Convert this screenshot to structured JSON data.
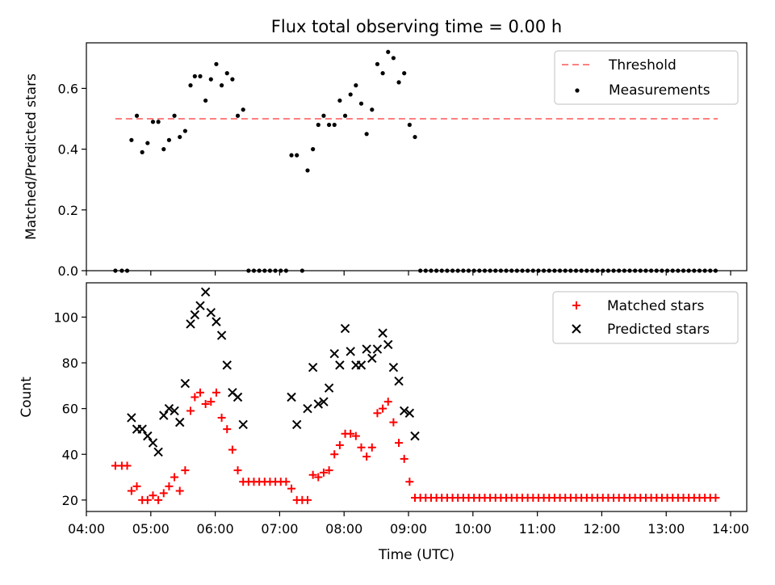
{
  "chart_data": [
    {
      "type": "scatter",
      "title": "Flux total observing time = 0.00 h",
      "xlabel": "",
      "ylabel": "Matched/Predicted stars",
      "ylim": [
        0,
        0.75
      ],
      "yticks": [
        0.0,
        0.2,
        0.4,
        0.6
      ],
      "ytick_labels": [
        "0.0",
        "0.2",
        "0.4",
        "0.6"
      ],
      "xlim": [
        "04:00",
        "14:15"
      ],
      "legend": "top-right",
      "series": [
        {
          "name": "Threshold",
          "kind": "dashed-line",
          "color": "#ff7f7f",
          "x": [
            "04:27",
            "13:48"
          ],
          "y": [
            0.5,
            0.5
          ]
        },
        {
          "name": "Measurements",
          "kind": "points",
          "color": "#000000",
          "x": [
            "04:27",
            "04:33",
            "04:38",
            "04:42",
            "04:47",
            "04:52",
            "04:57",
            "05:02",
            "05:07",
            "05:12",
            "05:17",
            "05:22",
            "05:27",
            "05:32",
            "05:37",
            "05:41",
            "05:46",
            "05:51",
            "05:56",
            "06:01",
            "06:06",
            "06:11",
            "06:16",
            "06:21",
            "06:26",
            "06:31",
            "06:36",
            "06:41",
            "06:46",
            "06:51",
            "06:56",
            "07:01",
            "07:06",
            "07:11",
            "07:16",
            "07:21",
            "07:26",
            "07:31",
            "07:36",
            "07:41",
            "07:46",
            "07:51",
            "07:56",
            "08:01",
            "08:06",
            "08:11",
            "08:16",
            "08:21",
            "08:26",
            "08:31",
            "08:36",
            "08:41",
            "08:46",
            "08:51",
            "08:56",
            "09:01",
            "09:06",
            "09:11",
            "09:16",
            "09:21",
            "09:26",
            "09:31",
            "09:36",
            "09:41",
            "09:46",
            "09:51",
            "09:56",
            "10:01",
            "10:06",
            "10:11",
            "10:16",
            "10:21",
            "10:26",
            "10:31",
            "10:36",
            "10:41",
            "10:46",
            "10:51",
            "10:56",
            "11:01",
            "11:06",
            "11:11",
            "11:16",
            "11:21",
            "11:26",
            "11:31",
            "11:36",
            "11:41",
            "11:46",
            "11:51",
            "11:56",
            "12:01",
            "12:06",
            "12:11",
            "12:16",
            "12:21",
            "12:26",
            "12:31",
            "12:36",
            "12:41",
            "12:46",
            "12:51",
            "12:56",
            "13:01",
            "13:06",
            "13:11",
            "13:16",
            "13:21",
            "13:26",
            "13:31",
            "13:36",
            "13:41",
            "13:46"
          ],
          "y": [
            0.0,
            0.0,
            0.0,
            0.43,
            0.51,
            0.39,
            0.42,
            0.49,
            0.49,
            0.4,
            0.43,
            0.51,
            0.44,
            0.46,
            0.61,
            0.64,
            0.64,
            0.56,
            0.63,
            0.68,
            0.61,
            0.65,
            0.63,
            0.51,
            0.53,
            0.0,
            0.0,
            0.0,
            0.0,
            0.0,
            0.0,
            0.0,
            0.0,
            0.38,
            0.38,
            0.0,
            0.33,
            0.4,
            0.48,
            0.51,
            0.48,
            0.48,
            0.56,
            0.51,
            0.58,
            0.61,
            0.55,
            0.45,
            0.53,
            0.68,
            0.65,
            0.72,
            0.7,
            0.62,
            0.65,
            0.48,
            0.44,
            0.0,
            0.0,
            0.0,
            0.0,
            0.0,
            0.0,
            0.0,
            0.0,
            0.0,
            0.0,
            0.0,
            0.0,
            0.0,
            0.0,
            0.0,
            0.0,
            0.0,
            0.0,
            0.0,
            0.0,
            0.0,
            0.0,
            0.0,
            0.0,
            0.0,
            0.0,
            0.0,
            0.0,
            0.0,
            0.0,
            0.0,
            0.0,
            0.0,
            0.0,
            0.0,
            0.0,
            0.0,
            0.0,
            0.0,
            0.0,
            0.0,
            0.0,
            0.0,
            0.0,
            0.0,
            0.0,
            0.0,
            0.0,
            0.0,
            0.0,
            0.0,
            0.0,
            0.0,
            0.0,
            0.0,
            0.0
          ]
        }
      ]
    },
    {
      "type": "scatter",
      "title": "",
      "xlabel": "Time (UTC)",
      "ylabel": "Count",
      "ylim": [
        15,
        115
      ],
      "yticks": [
        20,
        40,
        60,
        80,
        100
      ],
      "ytick_labels": [
        "20",
        "40",
        "60",
        "80",
        "100"
      ],
      "xlim": [
        "04:00",
        "14:15"
      ],
      "xticks": [
        "04:00",
        "05:00",
        "06:00",
        "07:00",
        "08:00",
        "09:00",
        "10:00",
        "11:00",
        "12:00",
        "13:00",
        "14:00"
      ],
      "xtick_labels": [
        "04:00",
        "05:00",
        "06:00",
        "07:00",
        "08:00",
        "09:00",
        "10:00",
        "11:00",
        "12:00",
        "13:00",
        "14:00"
      ],
      "legend": "top-right",
      "series": [
        {
          "name": "Matched stars",
          "marker": "+",
          "color": "#ff0000",
          "x": [
            "04:27",
            "04:33",
            "04:38",
            "04:42",
            "04:47",
            "04:52",
            "04:57",
            "05:02",
            "05:07",
            "05:12",
            "05:17",
            "05:22",
            "05:27",
            "05:32",
            "05:37",
            "05:41",
            "05:46",
            "05:51",
            "05:56",
            "06:01",
            "06:06",
            "06:11",
            "06:16",
            "06:21",
            "06:26",
            "06:31",
            "06:36",
            "06:41",
            "06:46",
            "06:51",
            "06:56",
            "07:01",
            "07:06",
            "07:11",
            "07:16",
            "07:21",
            "07:26",
            "07:31",
            "07:36",
            "07:41",
            "07:46",
            "07:51",
            "07:56",
            "08:01",
            "08:06",
            "08:11",
            "08:16",
            "08:21",
            "08:26",
            "08:31",
            "08:36",
            "08:41",
            "08:46",
            "08:51",
            "08:56",
            "09:01",
            "09:06",
            "09:11",
            "09:16",
            "09:21",
            "09:26",
            "09:31",
            "09:36",
            "09:41",
            "09:46",
            "09:51",
            "09:56",
            "10:01",
            "10:06",
            "10:11",
            "10:16",
            "10:21",
            "10:26",
            "10:31",
            "10:36",
            "10:41",
            "10:46",
            "10:51",
            "10:56",
            "11:01",
            "11:06",
            "11:11",
            "11:16",
            "11:21",
            "11:26",
            "11:31",
            "11:36",
            "11:41",
            "11:46",
            "11:51",
            "11:56",
            "12:01",
            "12:06",
            "12:11",
            "12:16",
            "12:21",
            "12:26",
            "12:31",
            "12:36",
            "12:41",
            "12:46",
            "12:51",
            "12:56",
            "13:01",
            "13:06",
            "13:11",
            "13:16",
            "13:21",
            "13:26",
            "13:31",
            "13:36",
            "13:41",
            "13:46"
          ],
          "y": [
            35,
            35,
            35,
            24,
            26,
            20,
            20,
            22,
            20,
            23,
            26,
            30,
            24,
            33,
            59,
            65,
            67,
            62,
            63,
            67,
            56,
            51,
            42,
            33,
            28,
            28,
            28,
            28,
            28,
            28,
            28,
            28,
            28,
            25,
            20,
            20,
            20,
            31,
            30,
            32,
            33,
            40,
            44,
            49,
            49,
            48,
            43,
            39,
            43,
            58,
            60,
            63,
            54,
            45,
            38,
            28,
            21,
            21,
            21,
            21,
            21,
            21,
            21,
            21,
            21,
            21,
            21,
            21,
            21,
            21,
            21,
            21,
            21,
            21,
            21,
            21,
            21,
            21,
            21,
            21,
            21,
            21,
            21,
            21,
            21,
            21,
            21,
            21,
            21,
            21,
            21,
            21,
            21,
            21,
            21,
            21,
            21,
            21,
            21,
            21,
            21,
            21,
            21,
            21,
            21,
            21,
            21,
            21,
            21,
            21,
            21,
            21,
            21
          ]
        },
        {
          "name": "Predicted stars",
          "marker": "x",
          "color": "#000000",
          "x": [
            "04:42",
            "04:47",
            "04:52",
            "04:57",
            "05:02",
            "05:07",
            "05:12",
            "05:17",
            "05:22",
            "05:27",
            "05:32",
            "05:37",
            "05:41",
            "05:46",
            "05:51",
            "05:56",
            "06:01",
            "06:06",
            "06:11",
            "06:16",
            "06:21",
            "06:26",
            "07:11",
            "07:16",
            "07:26",
            "07:31",
            "07:36",
            "07:41",
            "07:46",
            "07:51",
            "07:56",
            "08:01",
            "08:06",
            "08:11",
            "08:16",
            "08:21",
            "08:26",
            "08:31",
            "08:36",
            "08:41",
            "08:46",
            "08:51",
            "08:56",
            "09:01",
            "09:06"
          ],
          "y": [
            56,
            51,
            51,
            48,
            45,
            41,
            57,
            60,
            59,
            54,
            71,
            97,
            101,
            105,
            111,
            102,
            98,
            92,
            79,
            67,
            65,
            53,
            65,
            53,
            60,
            78,
            62,
            63,
            69,
            84,
            79,
            95,
            85,
            79,
            79,
            86,
            82,
            86,
            93,
            88,
            78,
            72,
            59,
            58,
            48
          ]
        }
      ]
    }
  ]
}
